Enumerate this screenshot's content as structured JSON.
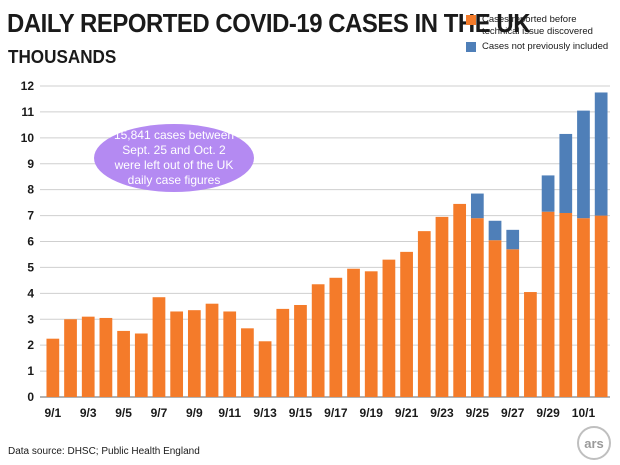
{
  "chart_data": {
    "type": "bar",
    "title": "DAILY REPORTED COVID-19 CASES IN THE UK",
    "subtitle": "THOUSANDS",
    "xlabel": "",
    "ylabel": "",
    "ylim": [
      0,
      12
    ],
    "yticks": [
      "0",
      "1",
      "2",
      "3",
      "4",
      "5",
      "6",
      "7",
      "8",
      "9",
      "10",
      "11",
      "12"
    ],
    "grid": true,
    "legend_position": "top-right",
    "categories": [
      "9/1",
      "9/2",
      "9/3",
      "9/4",
      "9/5",
      "9/6",
      "9/7",
      "9/8",
      "9/9",
      "9/10",
      "9/11",
      "9/12",
      "9/13",
      "9/14",
      "9/15",
      "9/16",
      "9/17",
      "9/18",
      "9/19",
      "9/20",
      "9/21",
      "9/22",
      "9/23",
      "9/24",
      "9/25",
      "9/26",
      "9/27",
      "9/28",
      "9/29",
      "9/30",
      "10/1",
      "10/2"
    ],
    "xtick_labels": [
      "9/1",
      "",
      "9/3",
      "",
      "9/5",
      "",
      "9/7",
      "",
      "9/9",
      "",
      "9/11",
      "",
      "9/13",
      "",
      "9/15",
      "",
      "9/17",
      "",
      "9/19",
      "",
      "9/21",
      "",
      "9/23",
      "",
      "9/25",
      "",
      "9/27",
      "",
      "9/29",
      "",
      "10/1",
      ""
    ],
    "series": [
      {
        "name": "Cases reported before technical issue discovered",
        "color": "#f47b2a",
        "values": [
          2.25,
          3.0,
          3.1,
          3.05,
          2.55,
          2.45,
          3.85,
          3.3,
          3.35,
          3.6,
          3.3,
          2.65,
          2.15,
          3.4,
          3.55,
          4.35,
          4.6,
          4.95,
          4.85,
          5.3,
          5.6,
          6.4,
          6.95,
          7.45,
          6.9,
          6.05,
          5.7,
          4.05,
          7.15,
          7.1,
          6.9,
          7.0
        ]
      },
      {
        "name": "Cases not previously included",
        "color": "#4f7fb8",
        "values": [
          0,
          0,
          0,
          0,
          0,
          0,
          0,
          0,
          0,
          0,
          0,
          0,
          0,
          0,
          0,
          0,
          0,
          0,
          0,
          0,
          0,
          0,
          0,
          0,
          0.95,
          0.75,
          0.75,
          0,
          1.4,
          3.05,
          4.15,
          4.75
        ]
      }
    ],
    "stacked": true
  },
  "annotation": {
    "text": "15,841 cases between Sept. 25 and Oct. 2 were left out of the UK daily case figures",
    "color": "#b48af2"
  },
  "source": "Data source: DHSC; Public Health England",
  "logo_text": "ars"
}
